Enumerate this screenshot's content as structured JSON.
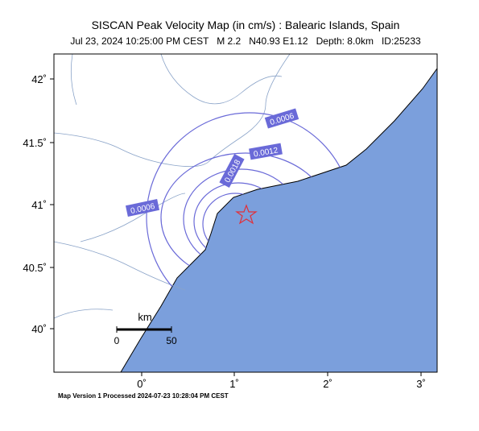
{
  "header": {
    "title": "SISCAN Peak Velocity Map (in cm/s) : Balearic Islands, Spain",
    "subtitle": "Jul 23, 2024 10:25:00 PM CEST   M 2.2   N40.93 E1.12   Depth: 8.0km   ID:25233"
  },
  "axes": {
    "x_labels": [
      "0˚",
      "1˚",
      "2˚",
      "3˚"
    ],
    "y_labels": [
      "42˚",
      "41.5˚",
      "41˚",
      "40.5˚",
      "40˚"
    ]
  },
  "contours": [
    {
      "label": "0.0006"
    },
    {
      "label": "0.0012"
    },
    {
      "label": "0.0018"
    },
    {
      "label": "0.0006"
    }
  ],
  "scale": {
    "unit": "km",
    "labels": [
      "0",
      "50"
    ]
  },
  "footer": "Map Version 1 Processed 2024-07-23 10:28:04 PM CEST"
}
